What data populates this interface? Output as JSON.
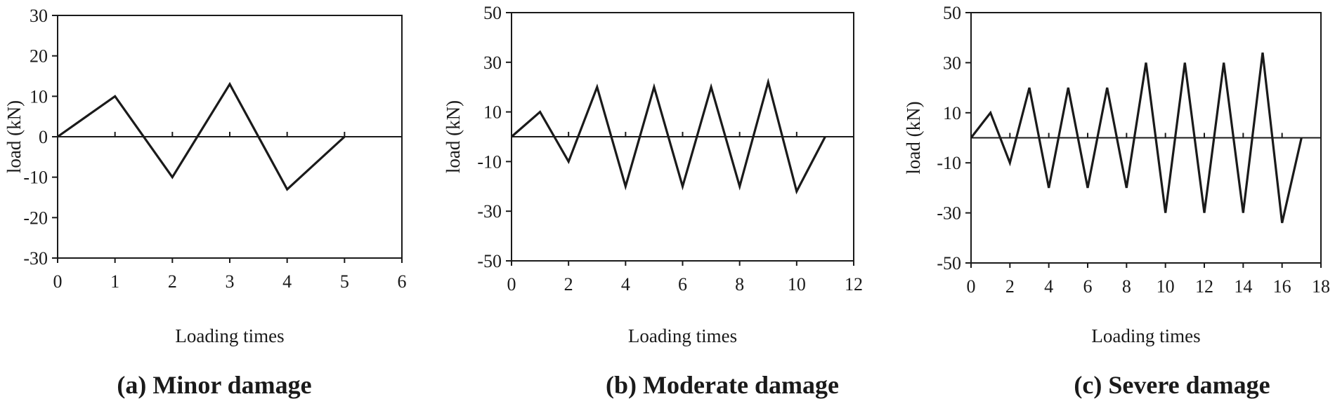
{
  "chart_data": [
    {
      "type": "line",
      "caption": "(a) Minor damage",
      "xlabel": "Loading times",
      "ylabel": "load (kN)",
      "xlim": [
        0,
        6
      ],
      "ylim": [
        -30,
        30
      ],
      "xticks": [
        "0",
        "1",
        "2",
        "3",
        "4",
        "5",
        "6"
      ],
      "yticks": [
        "30",
        "20",
        "10",
        "0",
        "-10",
        "-20",
        "-30"
      ],
      "xtick_values": [
        0,
        1,
        2,
        3,
        4,
        5,
        6
      ],
      "ytick_values": [
        30,
        20,
        10,
        0,
        -10,
        -20,
        -30
      ],
      "zero_line_ticks": [
        1,
        2,
        3,
        4,
        5
      ],
      "series": [
        {
          "x": [
            0,
            1,
            2,
            3,
            4,
            5
          ],
          "y": [
            0,
            10,
            -10,
            13,
            -13,
            0
          ]
        }
      ]
    },
    {
      "type": "line",
      "caption": "(b) Moderate damage",
      "xlabel": "Loading times",
      "ylabel": "load (kN)",
      "xlim": [
        0,
        12
      ],
      "ylim": [
        -50,
        50
      ],
      "xticks": [
        "0",
        "2",
        "4",
        "6",
        "8",
        "10",
        "12"
      ],
      "yticks": [
        "50",
        "30",
        "10",
        "-10",
        "-30",
        "-50"
      ],
      "xtick_values": [
        0,
        2,
        4,
        6,
        8,
        10,
        12
      ],
      "ytick_values": [
        50,
        30,
        10,
        -10,
        -30,
        -50
      ],
      "zero_line_ticks": [
        2,
        4,
        6,
        8,
        10
      ],
      "series": [
        {
          "x": [
            0,
            1,
            2,
            3,
            4,
            5,
            6,
            7,
            8,
            9,
            10,
            11
          ],
          "y": [
            0,
            10,
            -10,
            20,
            -20,
            20,
            -20,
            20,
            -20,
            22,
            -22,
            0
          ]
        }
      ]
    },
    {
      "type": "line",
      "caption": "(c) Severe damage",
      "xlabel": "Loading times",
      "ylabel": "load (kN)",
      "xlim": [
        0,
        18
      ],
      "ylim": [
        -50,
        50
      ],
      "xticks": [
        "0",
        "2",
        "4",
        "6",
        "8",
        "10",
        "12",
        "14",
        "16",
        "18"
      ],
      "yticks": [
        "50",
        "30",
        "10",
        "-10",
        "-30",
        "-50"
      ],
      "xtick_values": [
        0,
        2,
        4,
        6,
        8,
        10,
        12,
        14,
        16,
        18
      ],
      "ytick_values": [
        50,
        30,
        10,
        -10,
        -30,
        -50
      ],
      "zero_line_ticks": [
        2,
        4,
        6,
        8,
        10,
        12,
        14,
        16
      ],
      "series": [
        {
          "x": [
            0,
            1,
            2,
            3,
            4,
            5,
            6,
            7,
            8,
            9,
            10,
            11,
            12,
            13,
            14,
            15,
            16,
            17
          ],
          "y": [
            0,
            10,
            -10,
            20,
            -20,
            20,
            -20,
            20,
            -20,
            30,
            -30,
            30,
            -30,
            30,
            -30,
            34,
            -34,
            0
          ]
        }
      ]
    }
  ]
}
